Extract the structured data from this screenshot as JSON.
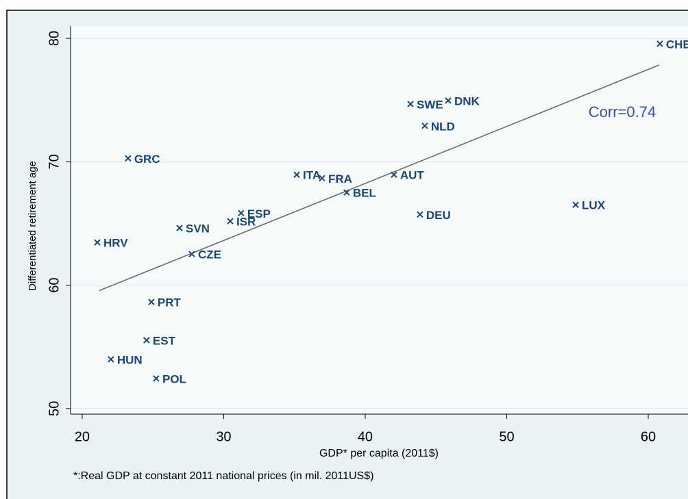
{
  "chart_data": {
    "type": "scatter",
    "ylabel": "Differentiated retirement age",
    "xlabel": "GDP* per capita (2011$)",
    "note": "*:Real GDP at constant 2011 national prices (in mil. 2011US$)",
    "annotation": "Corr=0.74",
    "color": "#1a476f",
    "x": [
      60.82,
      43.2,
      45.86,
      44.21,
      23.24,
      35.16,
      36.95,
      42.03,
      38.69,
      54.87,
      43.87,
      31.23,
      30.46,
      26.88,
      21.07,
      27.75,
      24.89,
      24.55,
      22.03,
      25.23
    ],
    "values": [
      79.56,
      74.68,
      74.96,
      72.91,
      70.28,
      68.95,
      68.67,
      68.95,
      67.51,
      66.51,
      65.73,
      65.84,
      65.18,
      64.63,
      63.46,
      62.52,
      58.64,
      55.54,
      53.99,
      52.44
    ],
    "labels": [
      "CHE",
      "SWE",
      "DNK",
      "NLD",
      "GRC",
      "ITA",
      "FRA",
      "AUT",
      "BEL",
      "LUX",
      "DEU",
      "ESP",
      "ISR",
      "SVN",
      "HRV",
      "CZE",
      "PRT",
      "EST",
      "HUN",
      "POL"
    ],
    "fit_line": {
      "x": [
        21.21,
        60.77
      ],
      "values": [
        59.56,
        77.84
      ],
      "color": "#6b6b6b"
    },
    "xlim": [
      19.18,
      62.81
    ],
    "ylim": [
      49.55,
      81.0
    ],
    "xticks": [
      20,
      30,
      40,
      50,
      60
    ],
    "yticks": [
      50,
      60,
      70,
      80
    ],
    "grid": true
  }
}
